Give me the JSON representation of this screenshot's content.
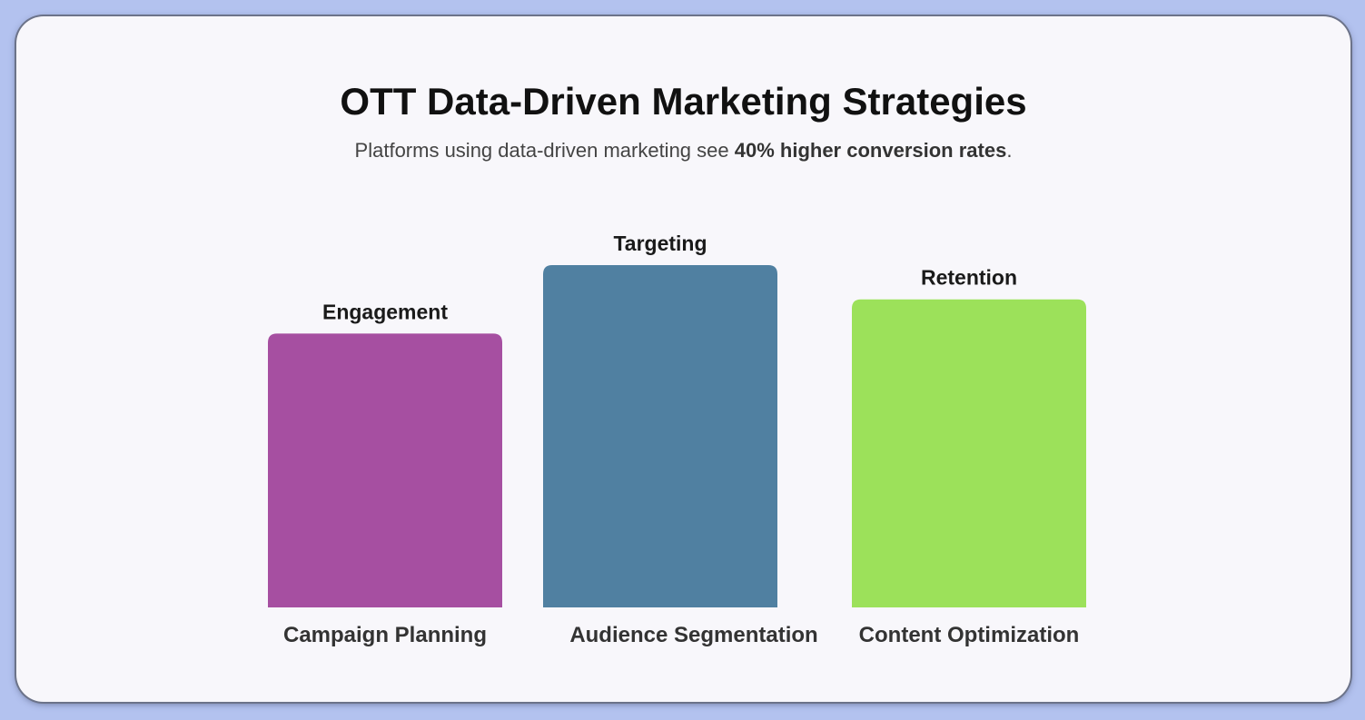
{
  "header": {
    "title": "OTT Data-Driven Marketing Strategies",
    "subtitle_prefix": "Platforms using data-driven marketing see ",
    "subtitle_highlight": "40% higher conversion rates",
    "subtitle_suffix": "."
  },
  "chart_data": {
    "type": "bar",
    "title": "OTT Data-Driven Marketing Strategies",
    "xlabel": "",
    "ylabel": "",
    "categories": [
      "Campaign Planning",
      "Audience Segmentation",
      "Content Optimization"
    ],
    "bar_labels": [
      "Engagement",
      "Targeting",
      "Retention"
    ],
    "values": [
      80,
      100,
      90
    ],
    "ylim": [
      0,
      100
    ],
    "colors": [
      "#a64fa1",
      "#5080a1",
      "#9ce15a"
    ],
    "grid": false,
    "legend": "none"
  }
}
